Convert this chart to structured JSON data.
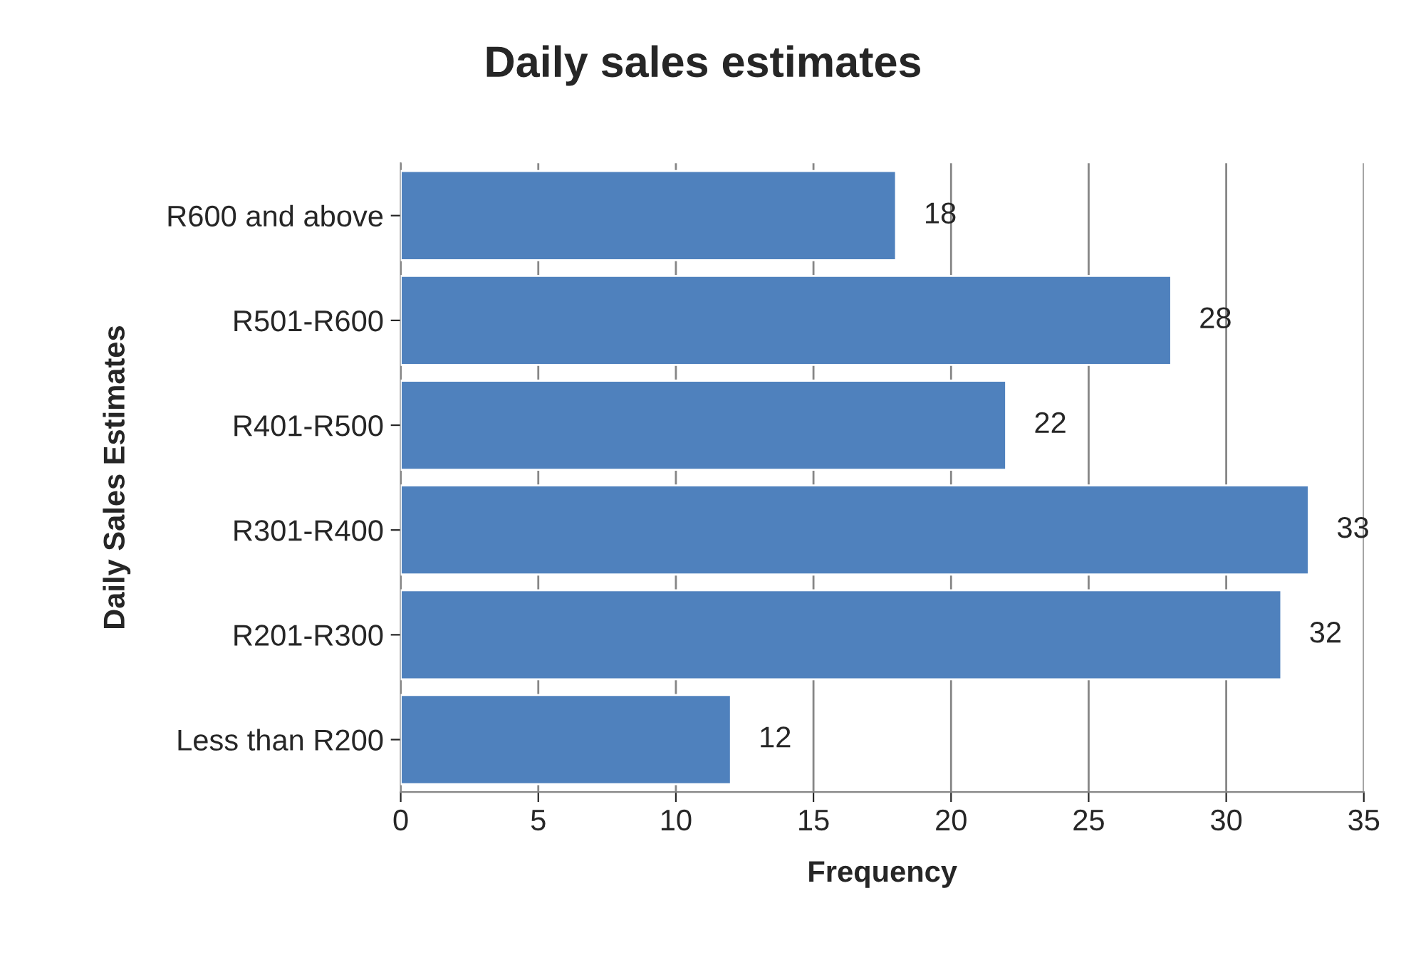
{
  "chart_data": {
    "type": "bar",
    "orientation": "horizontal",
    "title": "Daily sales estimates",
    "xlabel": "Frequency",
    "ylabel": "Daily Sales Estimates",
    "categories": [
      "R600 and above",
      "R501-R600",
      "R401-R500",
      "R301-R400",
      "R201-R300",
      "Less than R200"
    ],
    "values": [
      18,
      28,
      22,
      33,
      32,
      12
    ],
    "color": "#4f81bd",
    "xlim": [
      0,
      35
    ],
    "xticks": [
      0,
      5,
      10,
      15,
      20,
      25,
      30,
      35
    ],
    "grid": "x",
    "data_labels": true,
    "legend": false
  }
}
